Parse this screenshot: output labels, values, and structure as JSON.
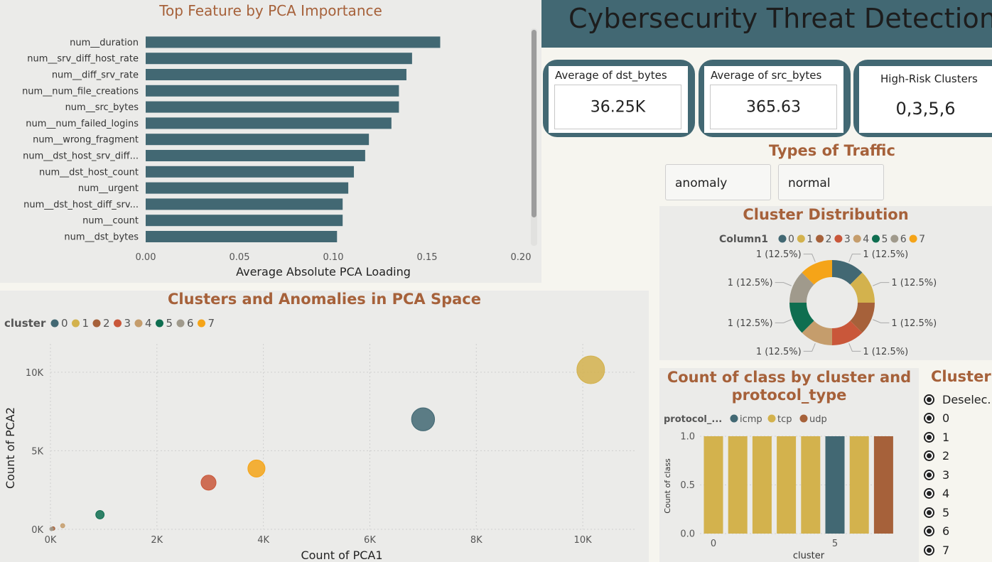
{
  "header": {
    "title": "Cybersecurity Threat Detection",
    "bg": "#426873"
  },
  "kpis": [
    {
      "label": "Average of dst_bytes",
      "value": "36.25K"
    },
    {
      "label": "Average of src_bytes",
      "value": "365.63"
    },
    {
      "label": "High-Risk Clusters",
      "value": "0,3,5,6"
    }
  ],
  "traffic": {
    "title": "Types of Traffic",
    "options": [
      "anomaly",
      "normal"
    ]
  },
  "cluster_slicer": {
    "title": "Cluster",
    "items": [
      "Deselec...",
      "0",
      "1",
      "2",
      "3",
      "4",
      "5",
      "6",
      "7"
    ]
  },
  "palette": {
    "0": "#426873",
    "1": "#d3b24d",
    "2": "#a6613a",
    "3": "#c9573a",
    "4": "#c59d6c",
    "5": "#0e6e50",
    "6": "#a09a8c",
    "7": "#f5a418"
  },
  "chart_data": [
    {
      "id": "pca_importance",
      "type": "bar",
      "orientation": "horizontal",
      "title": "Top Feature by PCA Importance",
      "xlabel": "Average Absolute PCA Loading",
      "ylabel": "",
      "xlim": [
        0,
        0.2
      ],
      "xticks": [
        "0.00",
        "0.05",
        "0.10",
        "0.15",
        "0.20"
      ],
      "xtick_values": [
        0,
        0.05,
        0.1,
        0.15,
        0.2
      ],
      "color": "#426873",
      "categories": [
        "num__duration",
        "num__srv_diff_host_rate",
        "num__diff_srv_rate",
        "num__num_file_creations",
        "num__src_bytes",
        "num__num_failed_logins",
        "num__wrong_fragment",
        "num__dst_host_srv_diff...",
        "num__dst_host_count",
        "num__urgent",
        "num__dst_host_diff_srv...",
        "num__count",
        "num__dst_bytes"
      ],
      "values": [
        0.157,
        0.142,
        0.139,
        0.135,
        0.135,
        0.131,
        0.119,
        0.117,
        0.111,
        0.108,
        0.105,
        0.105,
        0.102
      ]
    },
    {
      "id": "pca_scatter",
      "type": "scatter",
      "title": "Clusters and Anomalies in PCA Space",
      "xlabel": "Count of PCA1",
      "ylabel": "Count of PCA2",
      "legend_title": "cluster",
      "legend": [
        "0",
        "1",
        "2",
        "3",
        "4",
        "5",
        "6",
        "7"
      ],
      "xlim": [
        0,
        11000
      ],
      "ylim": [
        0,
        11800
      ],
      "xticks": [
        "0K",
        "2K",
        "4K",
        "6K",
        "8K",
        "10K"
      ],
      "xtick_values": [
        0,
        2000,
        4000,
        6000,
        8000,
        10000
      ],
      "yticks": [
        "0K",
        "5K",
        "10K"
      ],
      "ytick_values": [
        0,
        5000,
        10000
      ],
      "points": [
        {
          "cluster": "0",
          "x": 7000,
          "y": 7000,
          "size": 7000
        },
        {
          "cluster": "1",
          "x": 10150,
          "y": 10150,
          "size": 10150
        },
        {
          "cluster": "2",
          "x": 50,
          "y": 50,
          "size": 50
        },
        {
          "cluster": "3",
          "x": 2970,
          "y": 2970,
          "size": 2970
        },
        {
          "cluster": "4",
          "x": 230,
          "y": 230,
          "size": 230
        },
        {
          "cluster": "5",
          "x": 930,
          "y": 930,
          "size": 930
        },
        {
          "cluster": "6",
          "x": 20,
          "y": 20,
          "size": 20
        },
        {
          "cluster": "7",
          "x": 3870,
          "y": 3870,
          "size": 3870
        }
      ]
    },
    {
      "id": "cluster_distribution",
      "type": "pie",
      "donut": true,
      "title": "Cluster Distribution",
      "legend_title": "Column1",
      "legend": [
        "0",
        "1",
        "2",
        "3",
        "4",
        "5",
        "6",
        "7"
      ],
      "slices": [
        {
          "label": "0",
          "value": 1,
          "text": "1 (12.5%)"
        },
        {
          "label": "1",
          "value": 1,
          "text": "1 (12.5%)"
        },
        {
          "label": "2",
          "value": 1,
          "text": "1 (12.5%)"
        },
        {
          "label": "3",
          "value": 1,
          "text": "1 (12.5%)"
        },
        {
          "label": "4",
          "value": 1,
          "text": "1 (12.5%)"
        },
        {
          "label": "5",
          "value": 1,
          "text": "1 (12.5%)"
        },
        {
          "label": "6",
          "value": 1,
          "text": "1 (12.5%)"
        },
        {
          "label": "7",
          "value": 1,
          "text": "1 (12.5%)"
        }
      ]
    },
    {
      "id": "class_by_cluster",
      "type": "bar",
      "title": "Count of class by cluster and protocol_type",
      "title_lines": [
        "Count of class by cluster and",
        "protocol_type"
      ],
      "xlabel": "cluster",
      "ylabel": "Count of class",
      "legend_title": "protocol_...",
      "legend": [
        {
          "name": "icmp",
          "color": "#426873"
        },
        {
          "name": "tcp",
          "color": "#d3b24d"
        },
        {
          "name": "udp",
          "color": "#a6613a"
        }
      ],
      "ylim": [
        0,
        1
      ],
      "yticks": [
        "0.0",
        "0.5",
        "1.0"
      ],
      "ytick_values": [
        0,
        0.5,
        1
      ],
      "xticks": [
        "0",
        "5"
      ],
      "xtick_values": [
        0,
        5
      ],
      "categories": [
        0,
        1,
        2,
        3,
        4,
        5,
        6,
        7
      ],
      "protocols": [
        "tcp",
        "tcp",
        "tcp",
        "tcp",
        "tcp",
        "icmp",
        "tcp",
        "udp"
      ],
      "values": [
        1,
        1,
        1,
        1,
        1,
        1,
        1,
        1
      ]
    }
  ]
}
